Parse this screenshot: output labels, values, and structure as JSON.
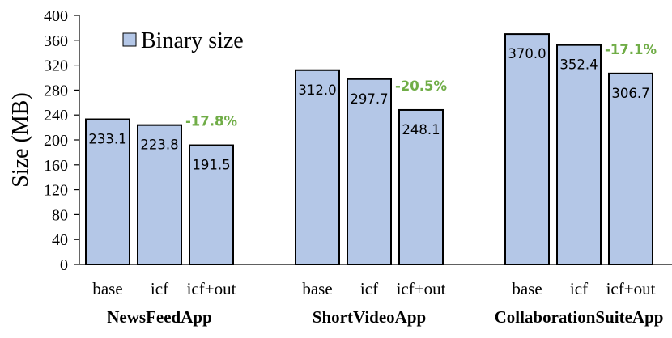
{
  "chart_data": {
    "type": "bar",
    "ylabel": "Size (MB)",
    "ylim": [
      0,
      400
    ],
    "yticks": [
      "0",
      "40",
      "80",
      "120",
      "160",
      "200",
      "240",
      "280",
      "320",
      "360",
      "400"
    ],
    "grid": false,
    "legend": {
      "placement": "top-left",
      "entries": [
        "Binary size"
      ]
    },
    "groups": [
      {
        "name": "NewsFeedApp",
        "categories": [
          "base",
          "icf",
          "icf+out"
        ],
        "values": [
          233.1,
          223.8,
          191.5
        ],
        "labels": [
          "233.1",
          "223.8",
          "191.5"
        ],
        "reduction_label": "-17.8%"
      },
      {
        "name": "ShortVideoApp",
        "categories": [
          "base",
          "icf",
          "icf+out"
        ],
        "values": [
          312.0,
          297.7,
          248.1
        ],
        "labels": [
          "312.0",
          "297.7",
          "248.1"
        ],
        "reduction_label": "-20.5%"
      },
      {
        "name": "CollaborationSuiteApp",
        "categories": [
          "base",
          "icf",
          "icf+out"
        ],
        "values": [
          370.0,
          352.4,
          306.7
        ],
        "labels": [
          "370.0",
          "352.4",
          "306.7"
        ],
        "reduction_label": "-17.1%"
      }
    ],
    "colors": {
      "bar_fill": "#b4c7e7",
      "bar_stroke": "#000000",
      "reduction": "#70ad47"
    }
  }
}
